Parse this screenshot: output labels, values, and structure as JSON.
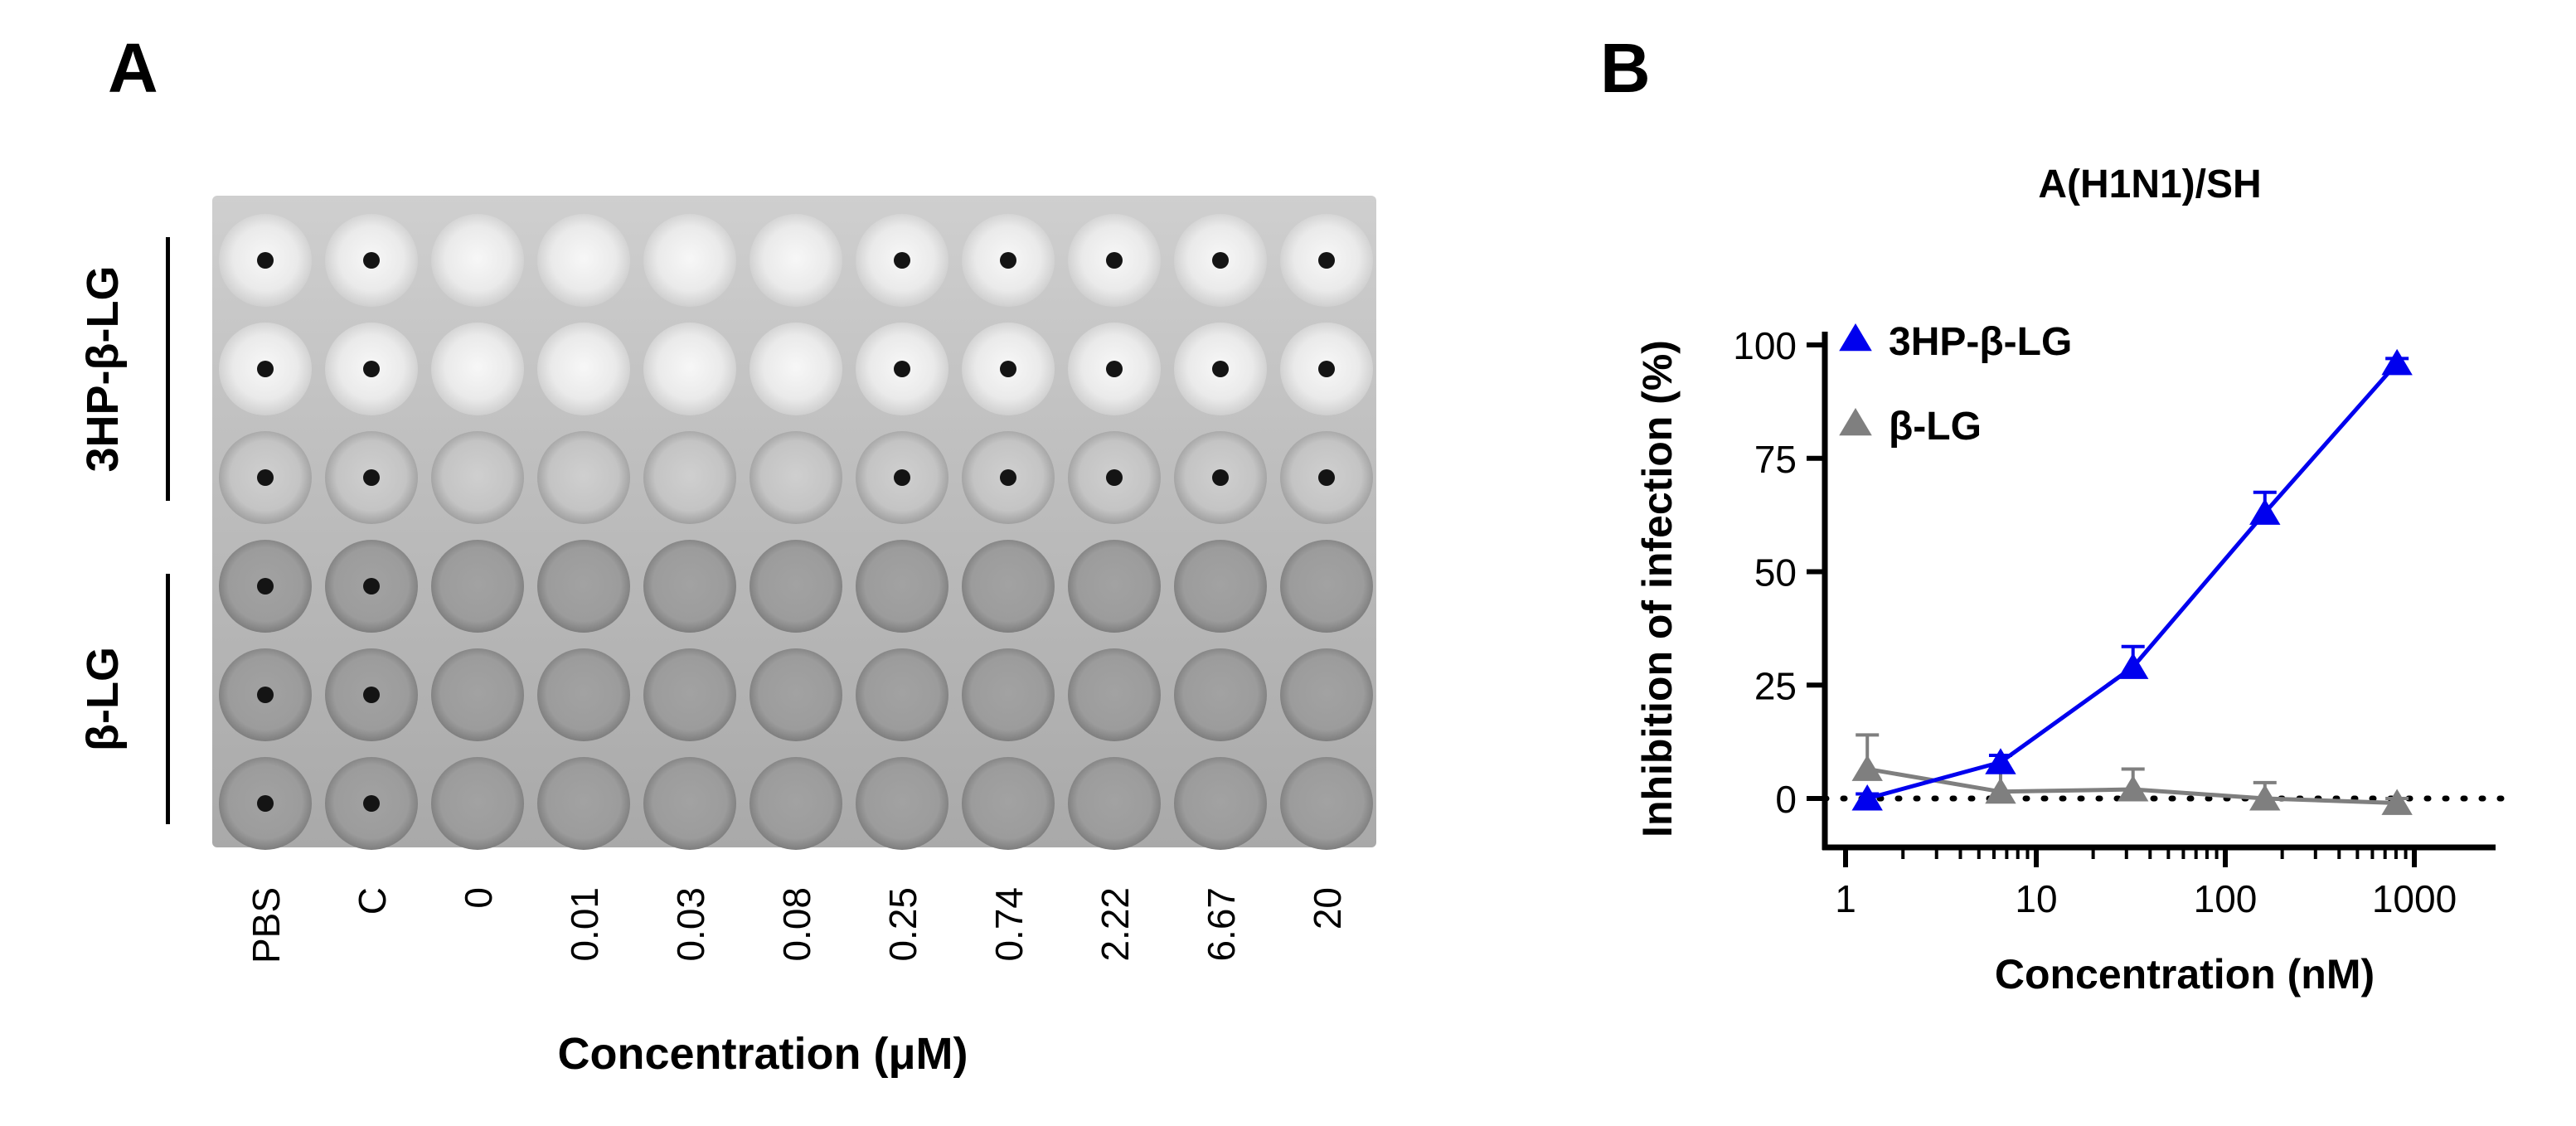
{
  "panel_a": {
    "letter": "A",
    "row_groups": [
      "3HP-β-LG",
      "β-LG"
    ],
    "columns": [
      "PBS",
      "C",
      "0",
      "0.01",
      "0.03",
      "0.08",
      "0.25",
      "0.74",
      "2.22",
      "6.67",
      "20"
    ],
    "x_title": "Concentration (μM)",
    "wells": [
      [
        "clear-dot",
        "clear-dot",
        "clear",
        "clear",
        "clear",
        "clear",
        "clear-dot",
        "clear-dot",
        "clear-dot",
        "clear-dot",
        "clear-dot"
      ],
      [
        "clear-dot",
        "clear-dot",
        "clear",
        "clear",
        "clear",
        "clear",
        "clear-dot",
        "clear-dot",
        "clear-dot",
        "clear-dot",
        "clear-dot"
      ],
      [
        "mid-dot",
        "mid-dot",
        "mid",
        "mid",
        "mid",
        "mid",
        "mid-dot",
        "mid-dot",
        "mid-dot",
        "mid-dot",
        "mid-dot"
      ],
      [
        "grey-dot",
        "grey-dot",
        "grey",
        "grey",
        "grey",
        "grey",
        "grey",
        "grey",
        "grey",
        "grey",
        "grey"
      ],
      [
        "grey-dot",
        "grey-dot",
        "grey",
        "grey",
        "grey",
        "grey",
        "grey",
        "grey",
        "grey",
        "grey",
        "grey"
      ],
      [
        "grey-dot",
        "grey-dot",
        "grey",
        "grey",
        "grey",
        "grey",
        "grey",
        "grey",
        "grey",
        "grey",
        "grey"
      ]
    ]
  },
  "panel_b": {
    "letter": "B"
  },
  "chart_data": {
    "type": "line",
    "title": "A(H1N1)/SH",
    "xlabel": "Concentration (nM)",
    "ylabel": "Inhibition of infection (%)",
    "xscale": "log",
    "xlim": [
      1,
      1000
    ],
    "ylim": [
      -10,
      100
    ],
    "xticks": [
      "1",
      "10",
      "100",
      "1000"
    ],
    "yticks": [
      "0",
      "25",
      "50",
      "75",
      "100"
    ],
    "zero_line": "dotted",
    "legend": "top-left",
    "series": [
      {
        "name": "3HP-β-LG",
        "color": "#0000ee",
        "marker": "triangle",
        "x": [
          1.3,
          6.5,
          32.5,
          162,
          810
        ],
        "y": [
          0,
          8,
          29,
          63,
          96
        ],
        "err": [
          1,
          1.5,
          4.5,
          4.5,
          1
        ]
      },
      {
        "name": "β-LG",
        "color": "#7f7f7f",
        "marker": "triangle",
        "x": [
          1.3,
          6.5,
          32.5,
          162,
          810
        ],
        "y": [
          6.5,
          1.5,
          2,
          0,
          -1
        ],
        "err": [
          7.5,
          4.5,
          4.5,
          3.5,
          1
        ]
      }
    ]
  }
}
